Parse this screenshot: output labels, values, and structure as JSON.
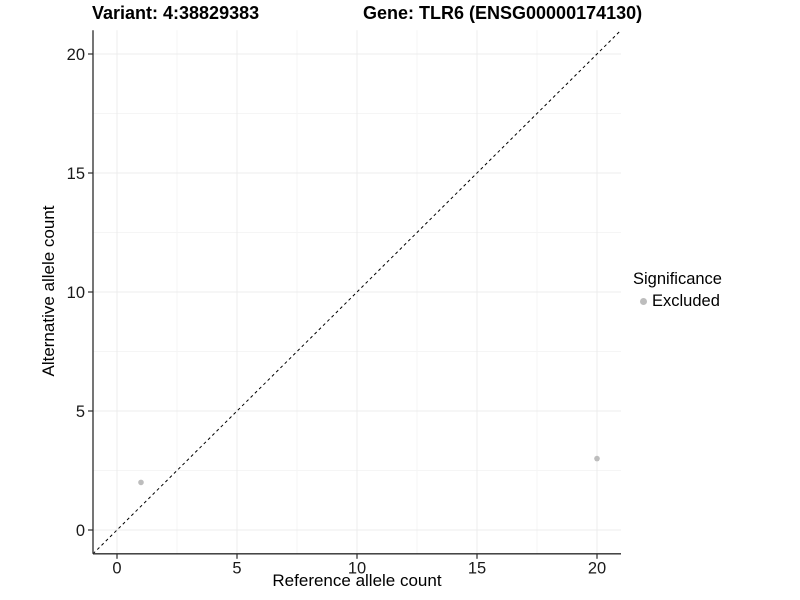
{
  "chart_data": {
    "type": "scatter",
    "title_left": "Variant: 4:38829383",
    "title_right": "Gene: TLR6 (ENSG00000174130)",
    "xlabel": "Reference allele count",
    "ylabel": "Alternative allele count",
    "xlim": [
      -1,
      21
    ],
    "ylim": [
      -1,
      21
    ],
    "x_ticks": [
      0,
      5,
      10,
      15,
      20
    ],
    "y_ticks": [
      0,
      5,
      10,
      15,
      20
    ],
    "x_minor_ticks": [
      2.5,
      7.5,
      12.5,
      17.5
    ],
    "y_minor_ticks": [
      2.5,
      7.5,
      12.5,
      17.5
    ],
    "grid": true,
    "identity_line": {
      "style": "dashed",
      "from": [
        -1,
        -1
      ],
      "to": [
        21,
        21
      ]
    },
    "series": [
      {
        "name": "Excluded",
        "color": "#bdbdbd",
        "points": [
          {
            "x": 1,
            "y": 2
          },
          {
            "x": 20,
            "y": 3
          }
        ]
      }
    ],
    "legend": {
      "title": "Significance",
      "position": "right",
      "entries": [
        {
          "label": "Excluded",
          "color": "#bdbdbd"
        }
      ]
    }
  },
  "colors": {
    "background": "#ffffff",
    "grid_major": "#ececec",
    "grid_minor": "#f5f5f5",
    "axis_line": "#2b2b2b",
    "tick_mark": "#2b2b2b",
    "tick_label": "#1a1a1a",
    "identity_line": "#000000",
    "point": "#bdbdbd",
    "text": "#000000"
  }
}
